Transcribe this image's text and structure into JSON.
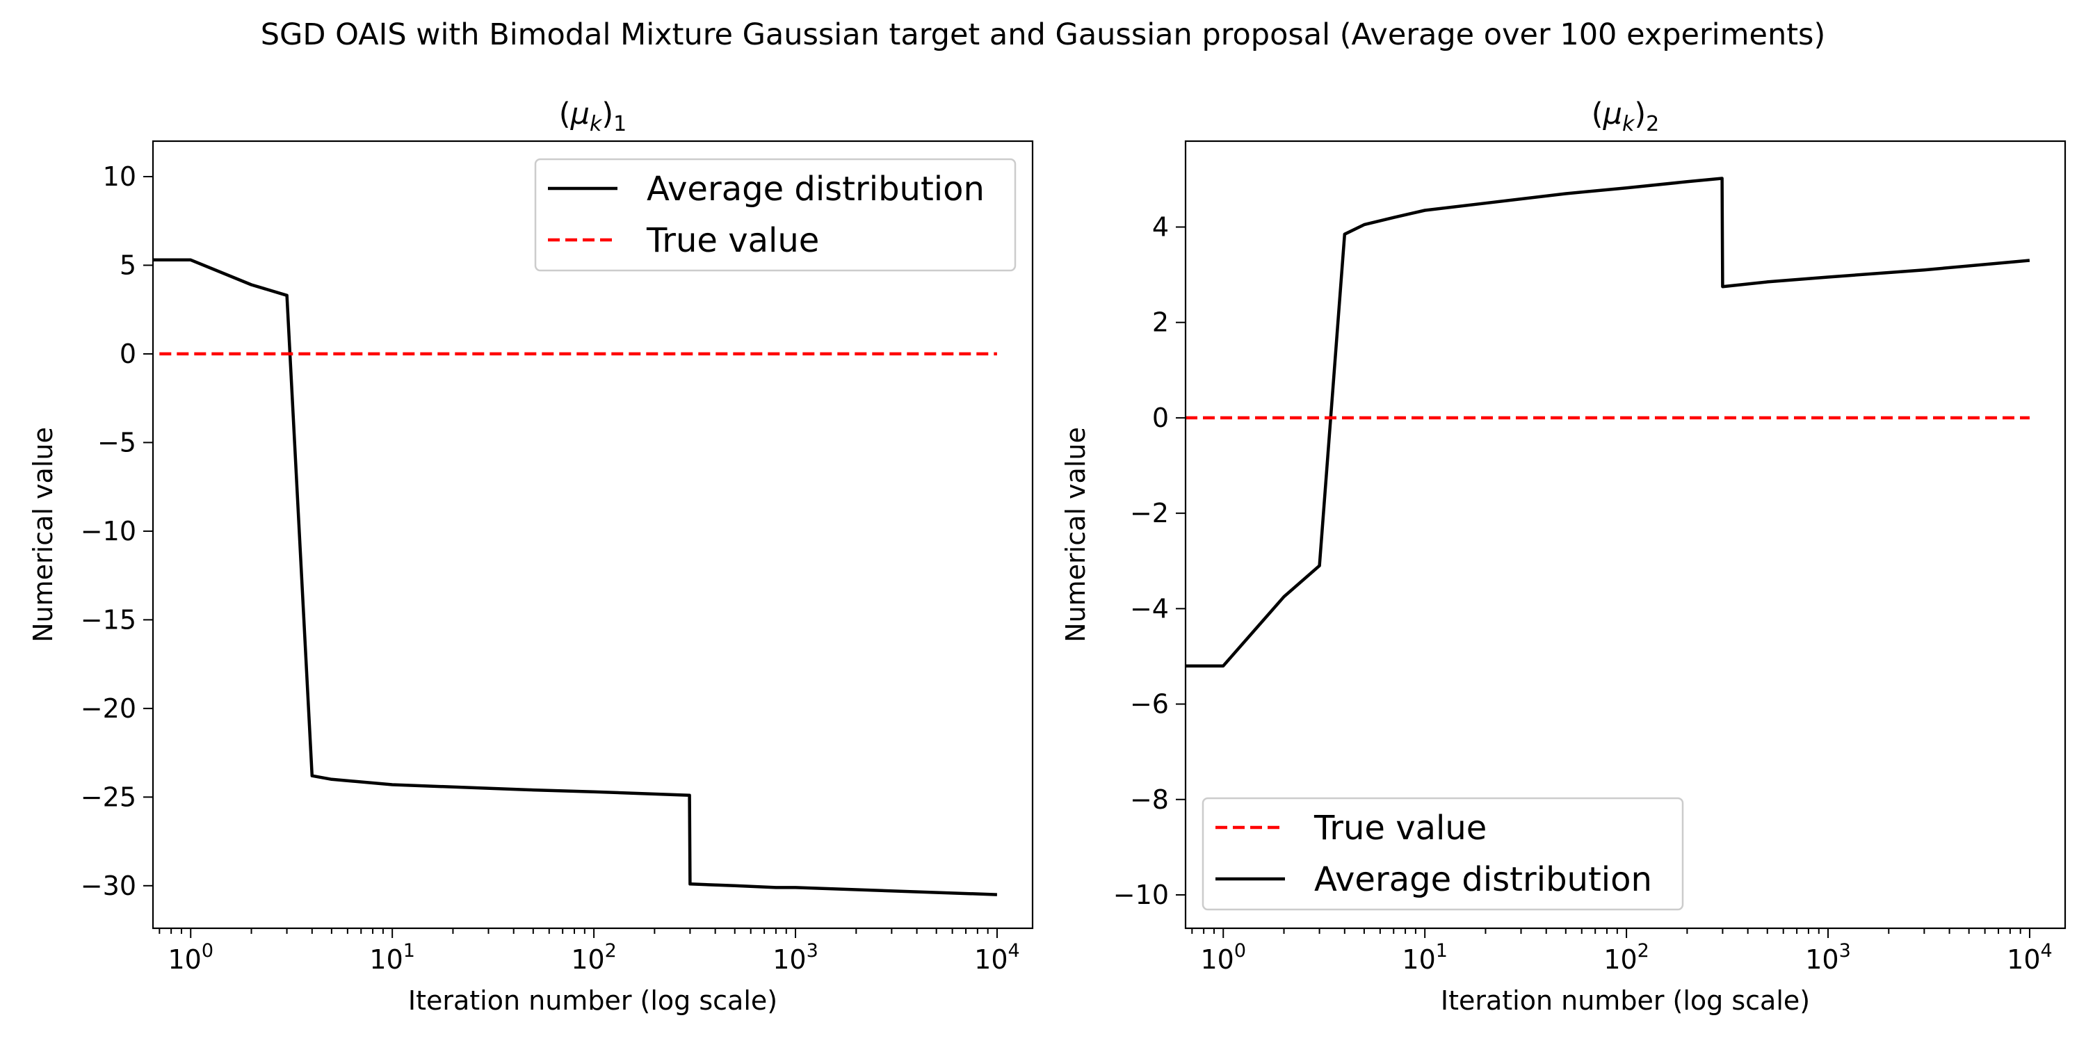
{
  "figure": {
    "suptitle": "SGD OAIS with Bimodal Mixture Gaussian target and Gaussian proposal (Average over 100 experiments)"
  },
  "colors": {
    "average": "#000000",
    "true_value": "#ff0000",
    "background": "#ffffff",
    "legend_border": "#cccccc"
  },
  "chart_data": [
    {
      "type": "line",
      "title": "(μk)1",
      "title_parts": {
        "base": "μ",
        "sub_k": "k",
        "sub_index": "1"
      },
      "xlabel": "Iteration number (log scale)",
      "ylabel": "Numerical value",
      "xscale": "log",
      "xlim": [
        0.65,
        15000
      ],
      "ylim": [
        -32.4,
        12
      ],
      "xticks": [
        1,
        10,
        100,
        1000,
        10000
      ],
      "xtick_labels": [
        {
          "base": "10",
          "exp": "0"
        },
        {
          "base": "10",
          "exp": "1"
        },
        {
          "base": "10",
          "exp": "2"
        },
        {
          "base": "10",
          "exp": "3"
        },
        {
          "base": "10",
          "exp": "4"
        }
      ],
      "yticks": [
        10,
        5,
        0,
        -5,
        -10,
        -15,
        -20,
        -25,
        -30
      ],
      "ytick_labels": [
        "10",
        "5",
        "0",
        "−5",
        "−10",
        "−15",
        "−20",
        "−25",
        "−30"
      ],
      "grid": false,
      "legend_position": "upper right",
      "legend": [
        {
          "name": "Average distribution",
          "style": "solid"
        },
        {
          "name": "True value",
          "style": "dashed"
        }
      ],
      "series": [
        {
          "name": "Average distribution",
          "style": "solid",
          "x": [
            0.65,
            1,
            2,
            3,
            4,
            5,
            10,
            50,
            100,
            298,
            300,
            500,
            800,
            1000,
            10000
          ],
          "y": [
            5.3,
            5.3,
            3.9,
            3.3,
            -23.8,
            -24.0,
            -24.3,
            -24.6,
            -24.7,
            -24.9,
            -29.9,
            -30.0,
            -30.1,
            -30.1,
            -30.5
          ]
        },
        {
          "name": "True value",
          "style": "dashed",
          "x": [
            0.7,
            10000
          ],
          "y": [
            0,
            0
          ]
        }
      ]
    },
    {
      "type": "line",
      "title": "(μk)2",
      "title_parts": {
        "base": "μ",
        "sub_k": "k",
        "sub_index": "2"
      },
      "xlabel": "Iteration number (log scale)",
      "ylabel": "Numerical value",
      "xscale": "log",
      "xlim": [
        0.65,
        15000
      ],
      "ylim": [
        -10.7,
        5.8
      ],
      "xticks": [
        1,
        10,
        100,
        1000,
        10000
      ],
      "xtick_labels": [
        {
          "base": "10",
          "exp": "0"
        },
        {
          "base": "10",
          "exp": "1"
        },
        {
          "base": "10",
          "exp": "2"
        },
        {
          "base": "10",
          "exp": "3"
        },
        {
          "base": "10",
          "exp": "4"
        }
      ],
      "yticks": [
        4,
        2,
        0,
        -2,
        -4,
        -6,
        -8,
        -10
      ],
      "ytick_labels": [
        "4",
        "2",
        "0",
        "−2",
        "−4",
        "−6",
        "−8",
        "−10"
      ],
      "grid": false,
      "legend_position": "lower left",
      "legend": [
        {
          "name": "True value",
          "style": "dashed"
        },
        {
          "name": "Average distribution",
          "style": "solid"
        }
      ],
      "series": [
        {
          "name": "Average distribution",
          "style": "solid",
          "x": [
            0.65,
            1,
            2,
            3,
            4,
            5,
            7,
            10,
            20,
            50,
            100,
            200,
            298,
            300,
            500,
            1000,
            3000,
            10000
          ],
          "y": [
            -5.2,
            -5.2,
            -3.75,
            -3.1,
            3.85,
            4.05,
            4.2,
            4.35,
            4.5,
            4.7,
            4.82,
            4.95,
            5.02,
            2.75,
            2.85,
            2.95,
            3.1,
            3.3
          ]
        },
        {
          "name": "True value",
          "style": "dashed",
          "x": [
            0.65,
            10000
          ],
          "y": [
            0,
            0
          ]
        }
      ]
    }
  ]
}
